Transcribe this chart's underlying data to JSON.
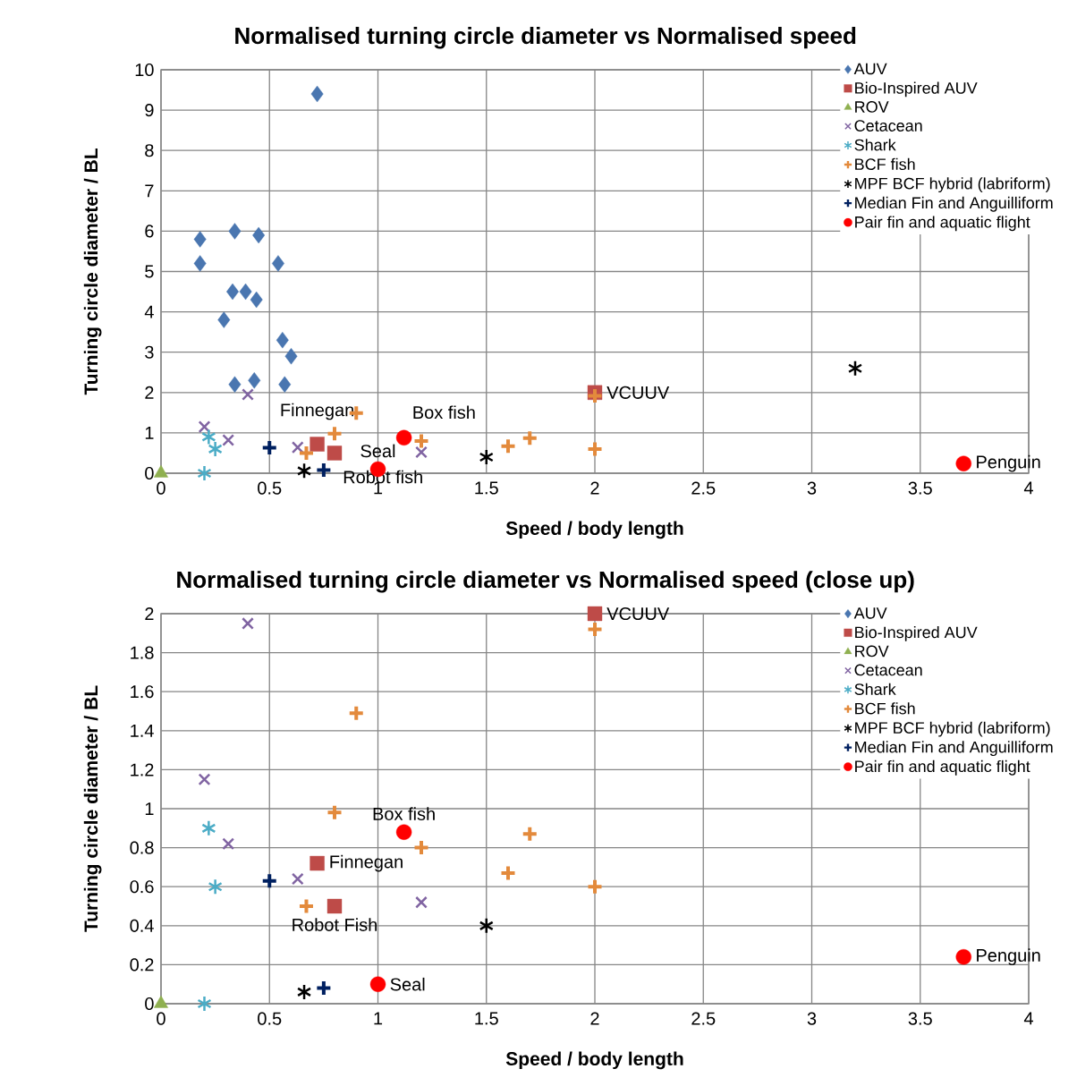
{
  "chart_data": [
    {
      "type": "scatter",
      "title": "Normalised turning circle diameter vs Normalised speed",
      "xlabel": "Speed / body length",
      "ylabel": "Turning circle diameter / BL",
      "xlim": [
        0,
        4
      ],
      "ylim": [
        0,
        10
      ],
      "xticks": [
        0,
        0.5,
        1,
        1.5,
        2,
        2.5,
        3,
        3.5,
        4
      ],
      "yticks": [
        0,
        1,
        2,
        3,
        4,
        5,
        6,
        7,
        8,
        9,
        10
      ],
      "grid": true,
      "legend": "top right",
      "series": [
        {
          "name": "AUV",
          "color": "#4a76b0",
          "marker": "diamond",
          "x": [
            0.72,
            0.18,
            0.34,
            0.45,
            0.18,
            0.54,
            0.33,
            0.39,
            0.44,
            0.29,
            0.56,
            0.6,
            0.34,
            0.43,
            0.57
          ],
          "values": [
            9.4,
            5.8,
            6.0,
            5.9,
            5.2,
            5.2,
            4.5,
            4.5,
            4.3,
            3.8,
            3.3,
            2.9,
            2.2,
            2.3,
            2.2
          ]
        },
        {
          "name": "Bio-Inspired AUV",
          "color": "#be4b48",
          "marker": "square",
          "x": [
            0.72,
            0.8,
            2.0
          ],
          "values": [
            0.72,
            0.5,
            2.0
          ]
        },
        {
          "name": "ROV",
          "color": "#8fb050",
          "marker": "triangle",
          "x": [
            0
          ],
          "values": [
            0
          ]
        },
        {
          "name": "Cetacean",
          "color": "#8064a2",
          "marker": "cross",
          "x": [
            0.4,
            0.2,
            0.31,
            0.63,
            1.2
          ],
          "values": [
            1.95,
            1.15,
            0.82,
            0.64,
            0.52
          ]
        },
        {
          "name": "Shark",
          "color": "#4bacc6",
          "x": [
            0.22,
            0.25,
            0.2
          ],
          "values": [
            0.9,
            0.6,
            0.0
          ]
        },
        {
          "name": "BCF fish",
          "color": "#e38a3c",
          "marker": "plus",
          "x": [
            2.0,
            0.9,
            0.8,
            1.2,
            1.7,
            1.6,
            2.0,
            0.67
          ],
          "values": [
            1.92,
            1.49,
            0.98,
            0.8,
            0.87,
            0.67,
            0.6,
            0.5
          ]
        },
        {
          "name": "MPF BCF hybrid (labriform)",
          "color": "#000000",
          "x": [
            0.66,
            1.5,
            3.2
          ],
          "values": [
            0.06,
            0.4,
            2.6
          ]
        },
        {
          "name": "Median Fin and Anguilliform",
          "color": "#002060",
          "marker": "plus",
          "x": [
            0.5,
            0.75
          ],
          "values": [
            0.63,
            0.08
          ]
        },
        {
          "name": "Pair fin and aquatic flight",
          "color": "#ff0000",
          "marker": "circle",
          "x": [
            1.12,
            1.0,
            3.7
          ],
          "values": [
            0.88,
            0.1,
            0.24
          ]
        }
      ],
      "annotations": [
        {
          "text": "VCUUV",
          "x": 2.0,
          "y": 2.0
        },
        {
          "text": "Finnegan",
          "x": 0.72,
          "y": 0.72
        },
        {
          "text": "Box fish",
          "x": 1.12,
          "y": 0.88
        },
        {
          "text": "Robot fish",
          "x": 0.8,
          "y": 0.5
        },
        {
          "text": "Seal",
          "x": 1.0,
          "y": 0.1
        },
        {
          "text": "Penguin",
          "x": 3.7,
          "y": 0.24
        }
      ]
    },
    {
      "type": "scatter",
      "title": "Normalised turning circle diameter vs Normalised speed (close up)",
      "xlabel": "Speed / body length",
      "ylabel": "Turning circle diameter / BL",
      "xlim": [
        0,
        4
      ],
      "ylim": [
        0,
        2
      ],
      "xticks": [
        0,
        0.5,
        1,
        1.5,
        2,
        2.5,
        3,
        3.5,
        4
      ],
      "yticks": [
        0,
        0.2,
        0.4,
        0.6,
        0.8,
        1,
        1.2,
        1.4,
        1.6,
        1.8,
        2
      ],
      "grid": true,
      "legend": "top right",
      "series": [
        {
          "name": "AUV",
          "color": "#4a76b0",
          "marker": "diamond"
        },
        {
          "name": "Bio-Inspired AUV",
          "color": "#be4b48",
          "marker": "square",
          "x": [
            0.72,
            0.8,
            2.0
          ],
          "values": [
            0.72,
            0.5,
            2.0
          ]
        },
        {
          "name": "ROV",
          "color": "#8fb050",
          "marker": "triangle",
          "x": [
            0
          ],
          "values": [
            0
          ]
        },
        {
          "name": "Cetacean",
          "color": "#8064a2",
          "marker": "cross",
          "x": [
            0.4,
            0.2,
            0.31,
            0.63,
            1.2
          ],
          "values": [
            1.95,
            1.15,
            0.82,
            0.64,
            0.52
          ]
        },
        {
          "name": "Shark",
          "color": "#4bacc6",
          "x": [
            0.22,
            0.25,
            0.2
          ],
          "values": [
            0.9,
            0.6,
            0.0
          ]
        },
        {
          "name": "BCF fish",
          "color": "#e38a3c",
          "marker": "plus",
          "x": [
            2.0,
            0.9,
            0.8,
            1.2,
            1.7,
            1.6,
            2.0,
            0.67
          ],
          "values": [
            1.92,
            1.49,
            0.98,
            0.8,
            0.87,
            0.67,
            0.6,
            0.5
          ]
        },
        {
          "name": "MPF BCF hybrid (labriform)",
          "color": "#000000",
          "x": [
            0.66,
            1.5
          ],
          "values": [
            0.06,
            0.4
          ]
        },
        {
          "name": "Median Fin and Anguilliform",
          "color": "#002060",
          "marker": "plus",
          "x": [
            0.5,
            0.75
          ],
          "values": [
            0.63,
            0.08
          ]
        },
        {
          "name": "Pair fin and aquatic flight",
          "color": "#ff0000",
          "marker": "circle",
          "x": [
            1.12,
            1.0,
            3.7
          ],
          "values": [
            0.88,
            0.1,
            0.24
          ]
        }
      ],
      "annotations": [
        {
          "text": "VCUUV",
          "x": 2.0,
          "y": 2.0
        },
        {
          "text": "Finnegan",
          "x": 0.72,
          "y": 0.72
        },
        {
          "text": "Box fish",
          "x": 1.12,
          "y": 0.88
        },
        {
          "text": "Robot Fish",
          "x": 0.8,
          "y": 0.5
        },
        {
          "text": "Seal",
          "x": 1.0,
          "y": 0.1
        },
        {
          "text": "Penguin",
          "x": 3.7,
          "y": 0.24
        }
      ]
    }
  ]
}
